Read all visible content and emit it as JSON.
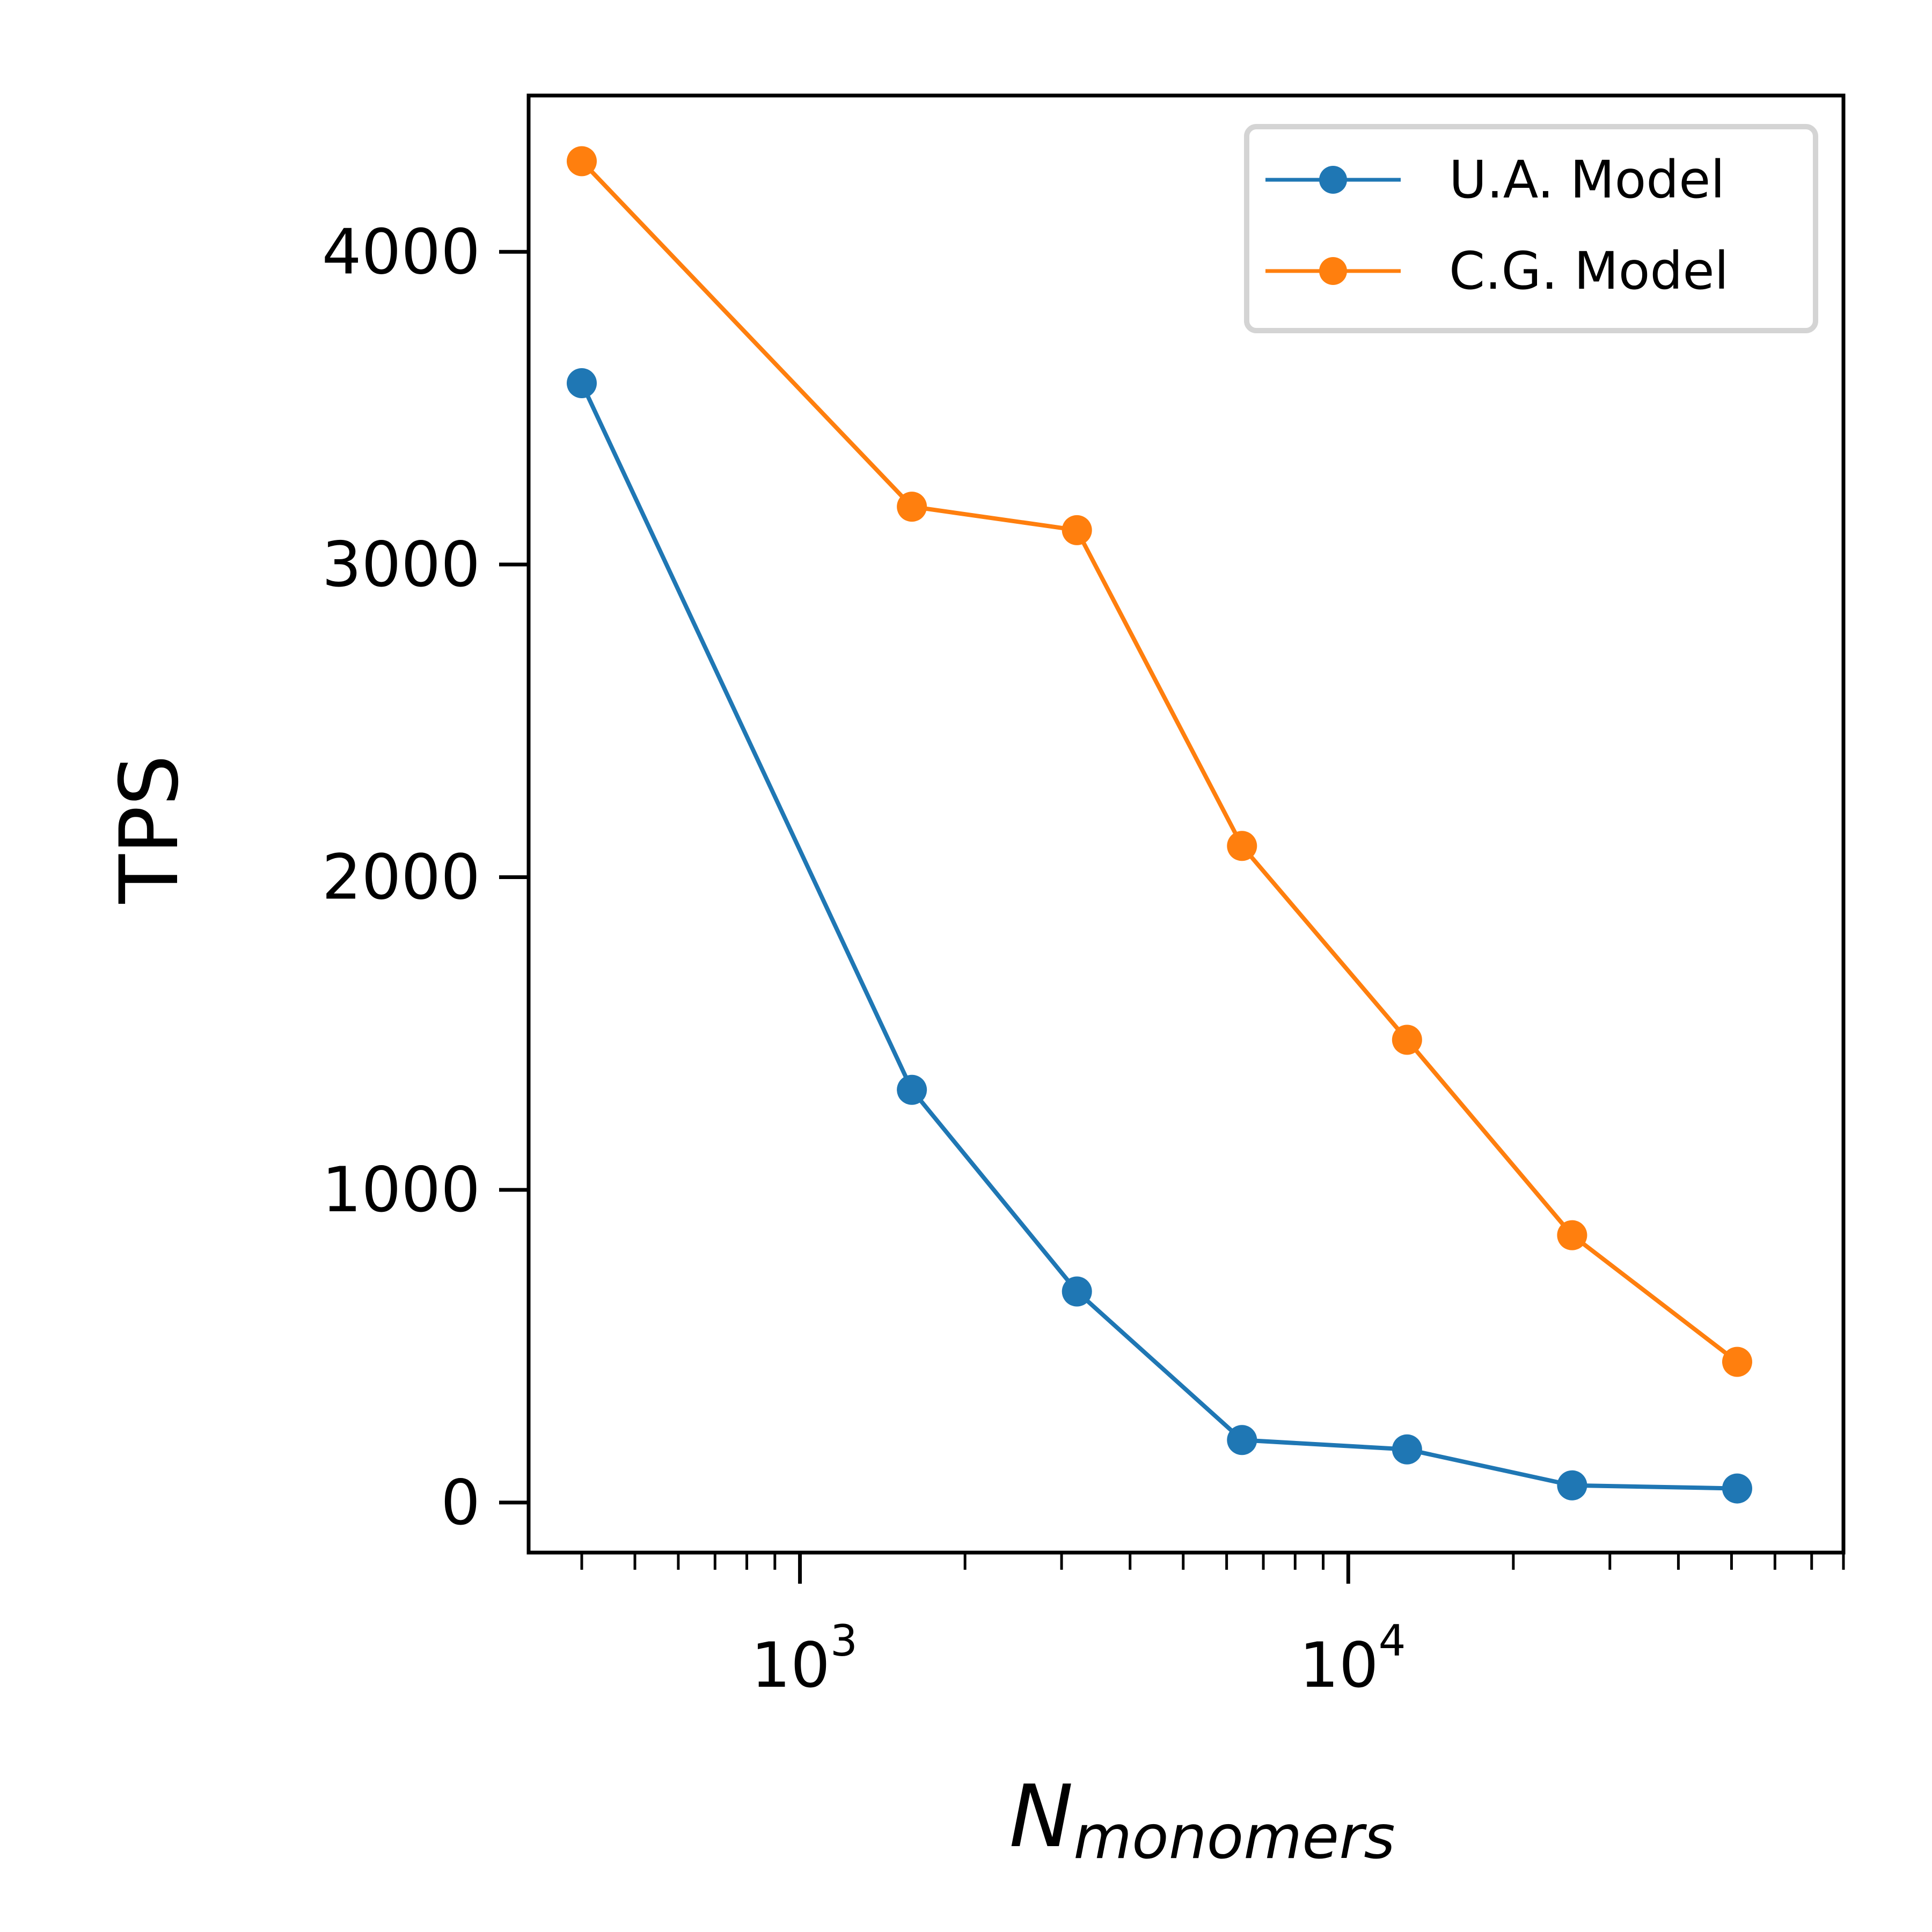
{
  "chart_data": {
    "type": "line",
    "title": "",
    "xlabel": {
      "base": "N",
      "subscript": "monomers"
    },
    "ylabel": "TPS",
    "xscale": "log",
    "xlim": [
      320,
      80000
    ],
    "ylim": [
      -160,
      4500
    ],
    "yticks": [
      0,
      1000,
      2000,
      3000,
      4000
    ],
    "xticks": [
      {
        "value": 1000,
        "base": "10",
        "exp": "3"
      },
      {
        "value": 10000,
        "base": "10",
        "exp": "4"
      }
    ],
    "x": [
      400,
      1600,
      3200,
      6400,
      12800,
      25600,
      51200
    ],
    "series": [
      {
        "name": "U.A. Model",
        "color": "#1f77b4",
        "values": [
          3580,
          1320,
          675,
          200,
          170,
          55,
          45
        ]
      },
      {
        "name": "C.G. Model",
        "color": "#ff7f0e",
        "values": [
          4290,
          3185,
          3110,
          2100,
          1480,
          855,
          450
        ]
      }
    ],
    "legend": {
      "position": "top-right"
    },
    "grid": false
  }
}
